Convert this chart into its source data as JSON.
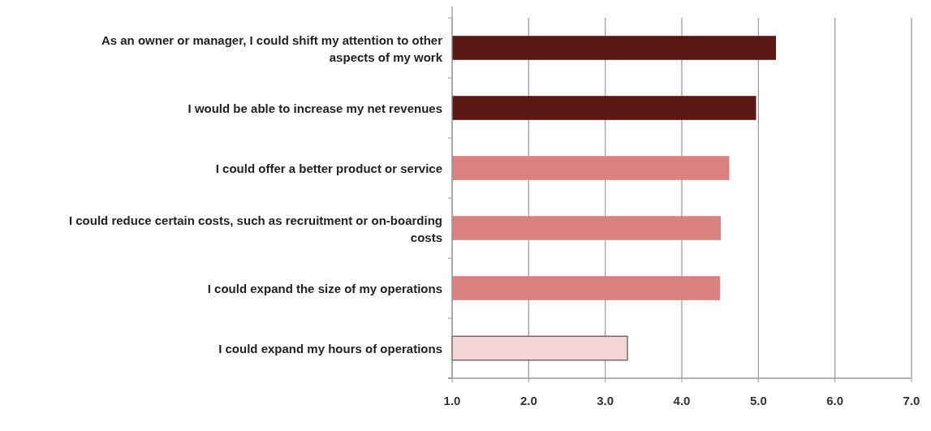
{
  "chart_data": {
    "type": "bar",
    "orientation": "horizontal",
    "categories": [
      "As an owner or manager, I could shift my attention to other aspects of my work",
      "I would be able to increase my net revenues",
      "I could offer a better product or service",
      "I could reduce certain costs, such as recruitment or on-boarding costs",
      "I could expand the size of my operations",
      "I could expand my hours of operations"
    ],
    "values": [
      5.23,
      4.97,
      4.62,
      4.51,
      4.5,
      3.29
    ],
    "colors": [
      "#5a1814",
      "#5a1814",
      "#d98080",
      "#d98080",
      "#d98080",
      "#f4d6d6"
    ],
    "xlim": [
      1,
      7
    ],
    "xticks": [
      {
        "value": 1,
        "label": "1.0"
      },
      {
        "value": 2,
        "label": "2.0"
      },
      {
        "value": 3,
        "label": "3.0"
      },
      {
        "value": 4,
        "label": "4.0"
      },
      {
        "value": 5,
        "label": "5.0"
      },
      {
        "value": 6,
        "label": "6.0"
      },
      {
        "value": 7,
        "label": "7.0"
      }
    ],
    "grid": "x"
  }
}
